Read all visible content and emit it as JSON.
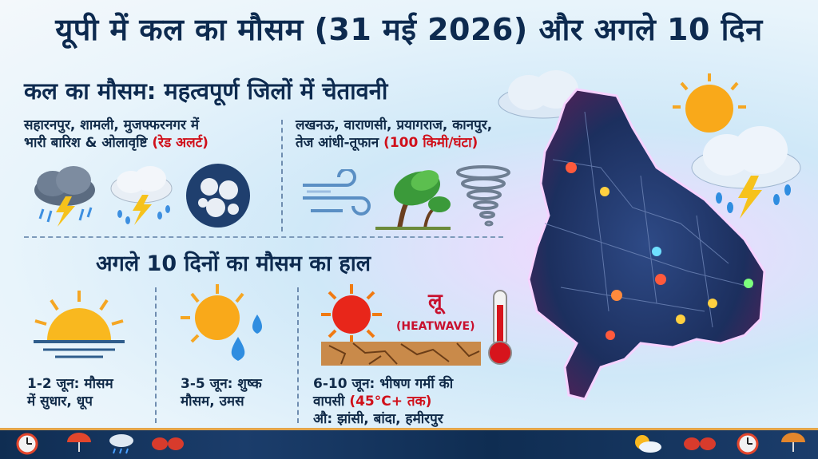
{
  "title": "यूपी में कल का मौसम (31 मई 2026) और अगले 10 दिन",
  "section1": {
    "title": "कल का मौसम: महत्वपूर्ण जिलों में चेतावनी",
    "left_line1": "सहारनपुर, शामली, मुजफ्फरनगर में",
    "left_line2_a": "भारी बारिश & ओलावृष्टि ",
    "left_line2_b": "(रेड अलर्ट)",
    "right_line1": "लखनऊ, वाराणसी, प्रयागराज, कानपुर,",
    "right_line2_a": "तेज आंधी-तूफान ",
    "right_line2_b": "(100 किमी/घंटा)"
  },
  "section2": {
    "title": "अगले 10 दिनों का मौसम का हाल",
    "col1_line1": "1-2 जून: मौसम",
    "col1_line2": "में सुधार, धूप",
    "col2_line1": "3-5 जून: शुष्क",
    "col2_line2": "मौसम, उमस",
    "col3_line1": "6-10 जून: भीषण गर्मी की",
    "col3_line2_a": "वापसी ",
    "col3_line2_b": "(45°C+ तक)",
    "col3_line3": "औ: झांसी, बांदा, हमीरपुर",
    "loo": "लू",
    "heatwave": "(HEATWAVE)"
  },
  "colors": {
    "title": "#0d2a4f",
    "alert": "#d0101a",
    "bar": "#0f2d52"
  },
  "icons": [
    "storm-cloud-icon",
    "rain-lightning-icon",
    "hail-icon",
    "wind-icon",
    "tree-storm-icon",
    "tornado-icon",
    "sunset-icon",
    "sun-rain-icon",
    "sun-icon",
    "cracked-earth-icon",
    "thermometer-icon",
    "cloud-icon",
    "sun-cloud-storm-icon",
    "up-map-icon",
    "clock-icon",
    "umbrella-icon",
    "sunglasses-icon"
  ]
}
